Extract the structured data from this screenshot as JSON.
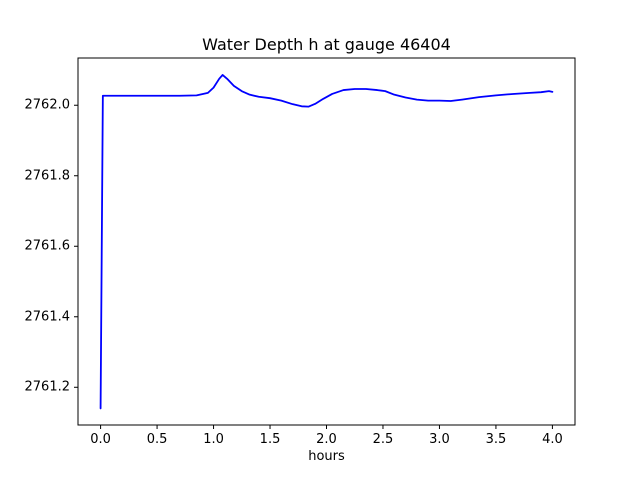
{
  "chart_data": {
    "type": "line",
    "title": "Water Depth h at gauge 46404",
    "xlabel": "hours",
    "ylabel": "",
    "grid": false,
    "legend": null,
    "xlim": [
      -0.2,
      4.2
    ],
    "ylim": [
      2761.093,
      2762.134
    ],
    "xticks": [
      0.0,
      0.5,
      1.0,
      1.5,
      2.0,
      2.5,
      3.0,
      3.5,
      4.0
    ],
    "xtick_labels": [
      "0.0",
      "0.5",
      "1.0",
      "1.5",
      "2.0",
      "2.5",
      "3.0",
      "3.5",
      "4.0"
    ],
    "yticks": [
      2761.2,
      2761.4,
      2761.6,
      2761.8,
      2762.0
    ],
    "ytick_labels": [
      "2761.2",
      "2761.4",
      "2761.6",
      "2761.8",
      "2762.0"
    ],
    "line_color": "#0000ff",
    "line_width": 1.8,
    "axis_color": "#000000",
    "background_color": "#ffffff",
    "series": [
      {
        "name": "water-depth-h",
        "x": [
          0.0,
          0.02,
          0.1,
          0.3,
          0.5,
          0.7,
          0.85,
          0.95,
          1.0,
          1.05,
          1.08,
          1.12,
          1.18,
          1.25,
          1.32,
          1.4,
          1.5,
          1.6,
          1.7,
          1.78,
          1.84,
          1.9,
          1.97,
          2.05,
          2.15,
          2.25,
          2.35,
          2.45,
          2.52,
          2.6,
          2.7,
          2.8,
          2.9,
          3.0,
          3.1,
          3.2,
          3.35,
          3.5,
          3.65,
          3.8,
          3.9,
          3.97,
          4.0
        ],
        "y": [
          2761.14,
          2762.027,
          2762.027,
          2762.027,
          2762.027,
          2762.027,
          2762.028,
          2762.035,
          2762.05,
          2762.075,
          2762.086,
          2762.075,
          2762.055,
          2762.04,
          2762.03,
          2762.024,
          2762.02,
          2762.013,
          2762.003,
          2761.997,
          2761.996,
          2762.004,
          2762.018,
          2762.032,
          2762.043,
          2762.046,
          2762.046,
          2762.043,
          2762.04,
          2762.03,
          2762.022,
          2762.016,
          2762.013,
          2762.013,
          2762.012,
          2762.016,
          2762.023,
          2762.028,
          2762.032,
          2762.035,
          2762.037,
          2762.04,
          2762.038
        ]
      }
    ]
  }
}
